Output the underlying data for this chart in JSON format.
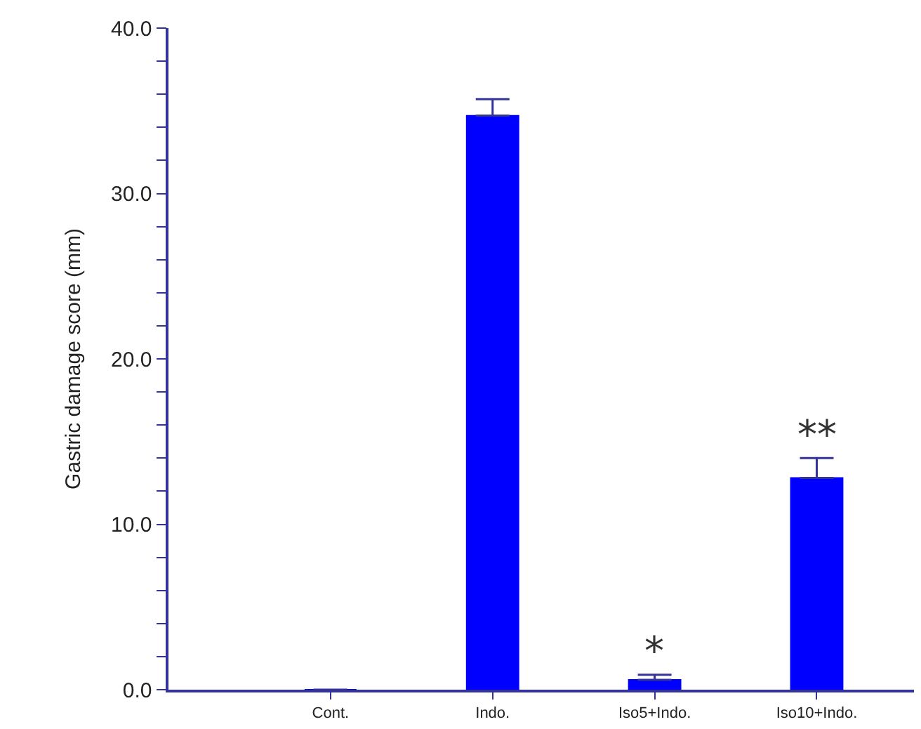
{
  "chart_data": {
    "type": "bar",
    "ylabel": "Gastric damage score (mm)",
    "categories": [
      "Cont.",
      "Indo.",
      "Iso5+Indo.",
      "Iso10+Indo."
    ],
    "values": [
      0,
      34.7,
      0.6,
      12.8
    ],
    "errors": [
      null,
      1.0,
      0.3,
      1.2
    ],
    "color": "#0000ff",
    "ylim": [
      0,
      40
    ],
    "yticks": [
      {
        "value": 0,
        "label": "0.0"
      },
      {
        "value": 2,
        "label": null
      },
      {
        "value": 4,
        "label": null
      },
      {
        "value": 6,
        "label": null
      },
      {
        "value": 8,
        "label": null
      },
      {
        "value": 10,
        "label": "10.0"
      },
      {
        "value": 12,
        "label": null
      },
      {
        "value": 14,
        "label": null
      },
      {
        "value": 16,
        "label": null
      },
      {
        "value": 18,
        "label": null
      },
      {
        "value": 20,
        "label": "20.0"
      },
      {
        "value": 22,
        "label": null
      },
      {
        "value": 24,
        "label": null
      },
      {
        "value": 26,
        "label": null
      },
      {
        "value": 28,
        "label": null
      },
      {
        "value": 30,
        "label": "30.0"
      },
      {
        "value": 32,
        "label": null
      },
      {
        "value": 34,
        "label": null
      },
      {
        "value": 36,
        "label": null
      },
      {
        "value": 38,
        "label": null
      },
      {
        "value": 40,
        "label": "40.0"
      }
    ],
    "annotations": [
      {
        "text": "*",
        "x": "Iso5+Indo.",
        "y": 0.9
      },
      {
        "text": "**",
        "x": "Iso10+Indo.",
        "y": 14.0
      }
    ]
  }
}
